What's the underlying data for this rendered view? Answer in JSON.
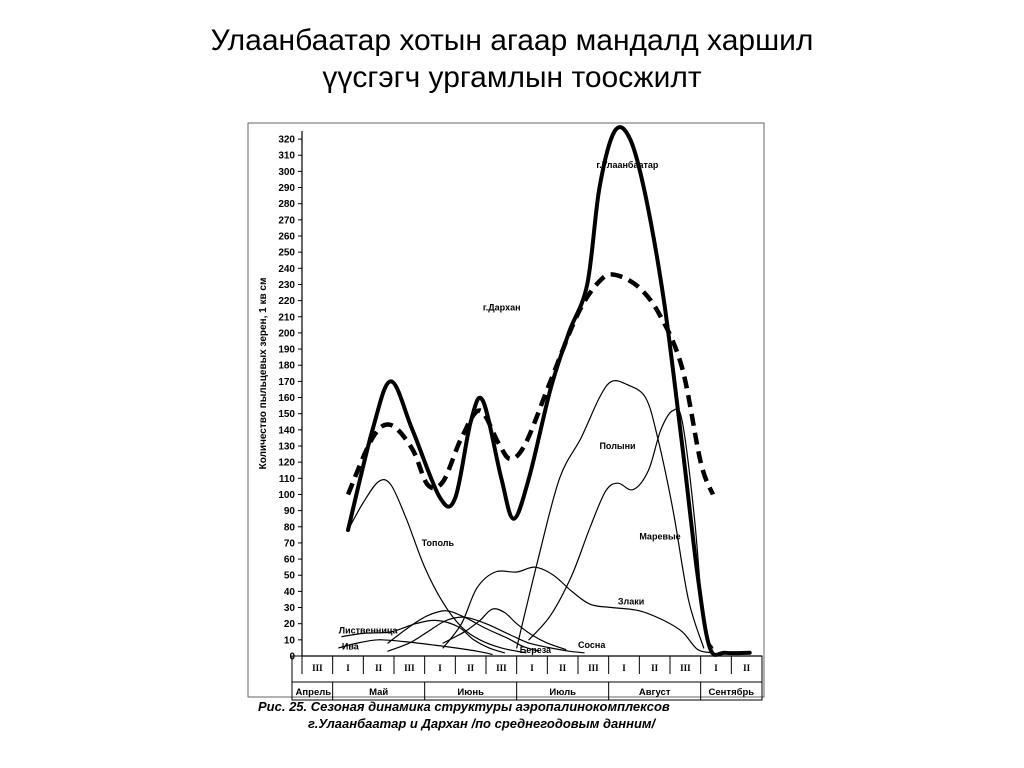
{
  "slide": {
    "title_line1": "Улаанбаатар хотын агаар мандалд харшил",
    "title_line2": "үүсгэгч ургамлын тоосжилт"
  },
  "caption": {
    "line1": "Рис. 25. Сезоная динамика структуры аэропалинокомплексов",
    "line2": "г.Улаанбаатар и Дархан    /по среднегодовым данним/"
  },
  "chart_data": {
    "type": "line",
    "ylabel": "Количество пыльцевых зерен, 1 кв см",
    "ylim": [
      0,
      325
    ],
    "yticks": [
      0,
      10,
      20,
      30,
      40,
      50,
      60,
      70,
      80,
      90,
      100,
      110,
      120,
      130,
      140,
      150,
      160,
      170,
      180,
      190,
      200,
      210,
      220,
      230,
      240,
      250,
      260,
      270,
      280,
      290,
      300,
      310,
      320
    ],
    "x_decades": [
      "III",
      "I",
      "II",
      "III",
      "I",
      "II",
      "III",
      "I",
      "II",
      "III",
      "I",
      "II",
      "III",
      "I",
      "II"
    ],
    "x_months": [
      "Апрель",
      "Май",
      "Июнь",
      "Июль",
      "Август",
      "Сентябрь"
    ],
    "series": [
      {
        "name": "г.Улаанбаатар",
        "style": "thick-solid",
        "points": [
          [
            1.5,
            78
          ],
          [
            2.3,
            140
          ],
          [
            2.9,
            170
          ],
          [
            3.6,
            140
          ],
          [
            4.5,
            98
          ],
          [
            5.0,
            98
          ],
          [
            5.5,
            145
          ],
          [
            5.9,
            158
          ],
          [
            6.5,
            110
          ],
          [
            6.9,
            85
          ],
          [
            7.4,
            110
          ],
          [
            8.1,
            165
          ],
          [
            8.7,
            200
          ],
          [
            9.3,
            230
          ],
          [
            9.7,
            290
          ],
          [
            10.2,
            325
          ],
          [
            10.7,
            320
          ],
          [
            11.2,
            285
          ],
          [
            11.8,
            220
          ],
          [
            12.4,
            130
          ],
          [
            12.9,
            50
          ],
          [
            13.3,
            5
          ],
          [
            13.8,
            2
          ],
          [
            14.6,
            2
          ]
        ]
      },
      {
        "name": "г.Дархан",
        "style": "thick-dashed",
        "points": [
          [
            1.5,
            100
          ],
          [
            2.3,
            135
          ],
          [
            2.9,
            143
          ],
          [
            3.6,
            128
          ],
          [
            4.1,
            106
          ],
          [
            4.6,
            108
          ],
          [
            5.2,
            135
          ],
          [
            5.8,
            152
          ],
          [
            6.4,
            132
          ],
          [
            6.8,
            122
          ],
          [
            7.3,
            132
          ],
          [
            8.1,
            170
          ],
          [
            9.0,
            212
          ],
          [
            9.7,
            232
          ],
          [
            10.2,
            236
          ],
          [
            11.0,
            228
          ],
          [
            11.7,
            210
          ],
          [
            12.4,
            178
          ],
          [
            13.0,
            120
          ],
          [
            13.4,
            100
          ]
        ]
      },
      {
        "name": "Тополь",
        "style": "thin",
        "points": [
          [
            1.5,
            78
          ],
          [
            2.0,
            95
          ],
          [
            2.5,
            108
          ],
          [
            2.9,
            106
          ],
          [
            3.4,
            85
          ],
          [
            4.0,
            55
          ],
          [
            4.6,
            33
          ],
          [
            5.2,
            18
          ],
          [
            5.8,
            10
          ],
          [
            6.5,
            5
          ],
          [
            7.3,
            2
          ]
        ]
      },
      {
        "name": "Полыни",
        "style": "thin",
        "points": [
          [
            7.0,
            5
          ],
          [
            7.7,
            60
          ],
          [
            8.4,
            110
          ],
          [
            9.1,
            135
          ],
          [
            9.7,
            160
          ],
          [
            10.1,
            170
          ],
          [
            10.6,
            168
          ],
          [
            11.2,
            160
          ],
          [
            11.6,
            135
          ],
          [
            12.1,
            90
          ],
          [
            12.6,
            35
          ],
          [
            13.1,
            5
          ]
        ]
      },
      {
        "name": "Маревые",
        "style": "thin",
        "points": [
          [
            7.4,
            10
          ],
          [
            8.1,
            25
          ],
          [
            8.8,
            50
          ],
          [
            9.4,
            80
          ],
          [
            9.9,
            102
          ],
          [
            10.3,
            107
          ],
          [
            10.8,
            103
          ],
          [
            11.3,
            115
          ],
          [
            11.7,
            140
          ],
          [
            12.1,
            152
          ],
          [
            12.4,
            145
          ],
          [
            12.8,
            85
          ],
          [
            13.1,
            20
          ],
          [
            13.4,
            5
          ]
        ]
      },
      {
        "name": "Злаки",
        "style": "thin",
        "points": [
          [
            4.6,
            5
          ],
          [
            5.2,
            20
          ],
          [
            5.7,
            42
          ],
          [
            6.3,
            52
          ],
          [
            7.0,
            52
          ],
          [
            7.6,
            55
          ],
          [
            8.2,
            50
          ],
          [
            8.8,
            40
          ],
          [
            9.4,
            32
          ],
          [
            10.1,
            30
          ],
          [
            11.0,
            28
          ],
          [
            11.8,
            22
          ],
          [
            12.4,
            15
          ],
          [
            12.9,
            4
          ],
          [
            13.4,
            2
          ]
        ]
      },
      {
        "name": "Лиственница",
        "style": "thin",
        "points": [
          [
            1.3,
            12
          ],
          [
            2.0,
            14
          ],
          [
            2.9,
            15
          ],
          [
            3.7,
            20
          ],
          [
            4.4,
            22
          ],
          [
            5.1,
            18
          ],
          [
            5.6,
            10
          ],
          [
            6.1,
            5
          ],
          [
            6.6,
            2
          ]
        ]
      },
      {
        "name": "Сосна",
        "style": "thin",
        "points": [
          [
            2.8,
            3
          ],
          [
            3.5,
            8
          ],
          [
            4.1,
            15
          ],
          [
            4.7,
            22
          ],
          [
            5.3,
            24
          ],
          [
            6.0,
            20
          ],
          [
            6.8,
            13
          ],
          [
            7.4,
            8
          ],
          [
            8.1,
            5
          ],
          [
            8.7,
            3
          ],
          [
            9.2,
            2
          ]
        ]
      },
      {
        "name": "Береза",
        "style": "thin",
        "points": [
          [
            2.8,
            8
          ],
          [
            3.5,
            18
          ],
          [
            4.1,
            25
          ],
          [
            4.7,
            28
          ],
          [
            5.3,
            24
          ],
          [
            6.0,
            17
          ],
          [
            6.7,
            11
          ],
          [
            7.2,
            6
          ],
          [
            7.7,
            3
          ]
        ]
      },
      {
        "name": "Ива",
        "style": "thin",
        "points": [
          [
            1.2,
            5
          ],
          [
            1.8,
            8
          ],
          [
            2.5,
            10
          ],
          [
            3.3,
            9
          ],
          [
            4.2,
            7
          ],
          [
            5.0,
            5
          ],
          [
            5.7,
            3
          ],
          [
            6.2,
            1
          ]
        ]
      },
      {
        "name": "",
        "style": "thin",
        "points": [
          [
            4.6,
            8
          ],
          [
            5.3,
            15
          ],
          [
            5.8,
            22
          ],
          [
            6.2,
            29
          ],
          [
            6.6,
            27
          ],
          [
            7.0,
            20
          ],
          [
            7.5,
            13
          ],
          [
            8.0,
            8
          ],
          [
            8.6,
            4
          ]
        ]
      }
    ],
    "series_labels": [
      {
        "series": "г.Улаанбаатар",
        "x": 9.6,
        "y": 302
      },
      {
        "series": "г.Дархан",
        "x": 5.9,
        "y": 214
      },
      {
        "series": "Тополь",
        "x": 3.9,
        "y": 68
      },
      {
        "series": "Полыни",
        "x": 9.7,
        "y": 128
      },
      {
        "series": "Маревые",
        "x": 11.0,
        "y": 72
      },
      {
        "series": "Злаки",
        "x": 10.3,
        "y": 32
      },
      {
        "series": "Лиственница",
        "x": 1.2,
        "y": 14
      },
      {
        "series": "Ива",
        "x": 1.3,
        "y": 4
      },
      {
        "series": "Береза",
        "x": 7.1,
        "y": 2
      },
      {
        "series": "Сосна",
        "x": 9.0,
        "y": 5
      }
    ],
    "grid": false,
    "colors": {
      "line": "#000000",
      "frame": "#666666"
    }
  }
}
